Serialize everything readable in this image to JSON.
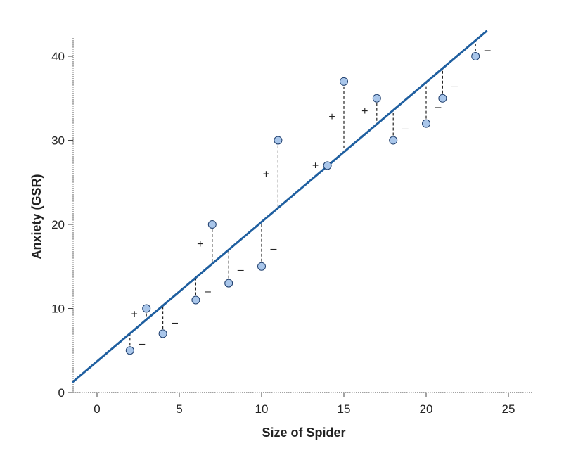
{
  "chart_data": {
    "type": "scatter",
    "xlabel": "Size of Spider",
    "ylabel": "Anxiety (GSR)",
    "xlim": [
      -1.5,
      26.5
    ],
    "ylim": [
      0,
      42.5
    ],
    "x_ticks": [
      0,
      5,
      10,
      15,
      20,
      25
    ],
    "y_ticks": [
      0,
      10,
      20,
      30,
      40
    ],
    "grid": false,
    "points": [
      {
        "x": 2,
        "y": 5,
        "sign": "–"
      },
      {
        "x": 3,
        "y": 10,
        "sign": "+"
      },
      {
        "x": 4,
        "y": 7,
        "sign": "–"
      },
      {
        "x": 6,
        "y": 11,
        "sign": "–"
      },
      {
        "x": 7,
        "y": 20,
        "sign": "+"
      },
      {
        "x": 8,
        "y": 13,
        "sign": "–"
      },
      {
        "x": 10,
        "y": 15,
        "sign": "–"
      },
      {
        "x": 11,
        "y": 30,
        "sign": "+"
      },
      {
        "x": 14,
        "y": 27,
        "sign": "+"
      },
      {
        "x": 15,
        "y": 37,
        "sign": "+"
      },
      {
        "x": 17,
        "y": 35,
        "sign": "+"
      },
      {
        "x": 18,
        "y": 30,
        "sign": "–"
      },
      {
        "x": 20,
        "y": 32,
        "sign": "–"
      },
      {
        "x": 21,
        "y": 35,
        "sign": "–"
      },
      {
        "x": 23,
        "y": 40,
        "sign": "–"
      }
    ],
    "regression_line": {
      "intercept": 3.7,
      "slope": 1.66,
      "x_range": [
        -1.5,
        23.7
      ]
    },
    "colors": {
      "line": "#1f5fa0",
      "point_fill": "#a9c6ea",
      "point_stroke": "#1f3f6e",
      "axis": "#444444"
    }
  }
}
